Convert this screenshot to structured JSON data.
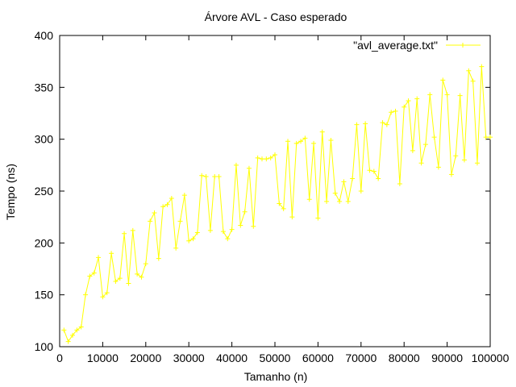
{
  "chart_data": {
    "type": "line",
    "title": "Árvore AVL - Caso esperado",
    "xlabel": "Tamanho (n)",
    "ylabel": "Tempo (ns)",
    "xlim": [
      0,
      100000
    ],
    "ylim": [
      100,
      400
    ],
    "xticks": [
      "0",
      "10000",
      "20000",
      "30000",
      "40000",
      "50000",
      "60000",
      "70000",
      "80000",
      "90000",
      "100000"
    ],
    "yticks": [
      "100",
      "150",
      "200",
      "250",
      "300",
      "350",
      "400"
    ],
    "xtick_values": [
      0,
      10000,
      20000,
      30000,
      40000,
      50000,
      60000,
      70000,
      80000,
      90000,
      100000
    ],
    "ytick_values": [
      100,
      150,
      200,
      250,
      300,
      350,
      400
    ],
    "grid": false,
    "legend_position": "top-right",
    "series": [
      {
        "name": "\"avl_average.txt\"",
        "color": "#ffff00",
        "marker": "plus",
        "x": [
          1000,
          2000,
          3000,
          4000,
          5000,
          6000,
          7000,
          8000,
          9000,
          10000,
          11000,
          12000,
          13000,
          14000,
          15000,
          16000,
          17000,
          18000,
          19000,
          20000,
          21000,
          22000,
          23000,
          24000,
          25000,
          26000,
          27000,
          28000,
          29000,
          30000,
          31000,
          32000,
          33000,
          34000,
          35000,
          36000,
          37000,
          38000,
          39000,
          40000,
          41000,
          42000,
          43000,
          44000,
          45000,
          46000,
          47000,
          48000,
          49000,
          50000,
          51000,
          52000,
          53000,
          54000,
          55000,
          56000,
          57000,
          58000,
          59000,
          60000,
          61000,
          62000,
          63000,
          64000,
          65000,
          66000,
          67000,
          68000,
          69000,
          70000,
          71000,
          72000,
          73000,
          74000,
          75000,
          76000,
          77000,
          78000,
          79000,
          80000,
          81000,
          82000,
          83000,
          84000,
          85000,
          86000,
          87000,
          88000,
          89000,
          90000,
          91000,
          92000,
          93000,
          94000,
          95000,
          96000,
          97000,
          98000,
          99000,
          100000
        ],
        "y": [
          116,
          105,
          111,
          116,
          119,
          150,
          168,
          171,
          186,
          148,
          152,
          190,
          163,
          166,
          209,
          161,
          212,
          170,
          167,
          180,
          221,
          229,
          185,
          235,
          237,
          243,
          195,
          221,
          246,
          202,
          204,
          210,
          265,
          264,
          212,
          264,
          264,
          211,
          204,
          213,
          275,
          217,
          230,
          272,
          216,
          282,
          281,
          281,
          282,
          285,
          238,
          233,
          298,
          225,
          296,
          298,
          301,
          242,
          296,
          224,
          307,
          240,
          299,
          248,
          240,
          259,
          240,
          262,
          314,
          250,
          315,
          270,
          269,
          262,
          316,
          314,
          326,
          327,
          257,
          331,
          337,
          289,
          339,
          277,
          295,
          343,
          302,
          273,
          357,
          343,
          266,
          284,
          342,
          280,
          366,
          356,
          277,
          370,
          302,
          302
        ]
      }
    ]
  }
}
